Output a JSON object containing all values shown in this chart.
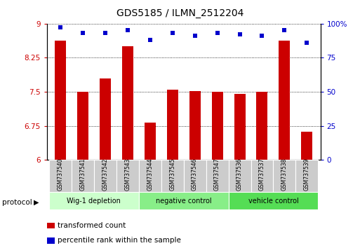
{
  "title": "GDS5185 / ILMN_2512204",
  "samples": [
    "GSM737540",
    "GSM737541",
    "GSM737542",
    "GSM737543",
    "GSM737544",
    "GSM737545",
    "GSM737546",
    "GSM737547",
    "GSM737536",
    "GSM737537",
    "GSM737538",
    "GSM737539"
  ],
  "bar_values": [
    8.62,
    7.5,
    7.8,
    8.5,
    6.82,
    7.55,
    7.52,
    7.5,
    7.45,
    7.5,
    8.62,
    6.62
  ],
  "dot_values": [
    97,
    93,
    93,
    95,
    88,
    93,
    91,
    93,
    92,
    91,
    95,
    86
  ],
  "bar_color": "#cc0000",
  "dot_color": "#0000cc",
  "ylim_left": [
    6,
    9
  ],
  "ylim_right": [
    0,
    100
  ],
  "yticks_left": [
    6,
    6.75,
    7.5,
    8.25,
    9
  ],
  "ytick_labels_left": [
    "6",
    "6.75",
    "7.5",
    "8.25",
    "9"
  ],
  "yticks_right": [
    0,
    25,
    50,
    75,
    100
  ],
  "ytick_labels_right": [
    "0",
    "25",
    "50",
    "75",
    "100%"
  ],
  "groups": [
    {
      "label": "Wig-1 depletion",
      "start": 0,
      "end": 3,
      "color": "#ccffcc"
    },
    {
      "label": "negative control",
      "start": 4,
      "end": 7,
      "color": "#88ee88"
    },
    {
      "label": "vehicle control",
      "start": 8,
      "end": 11,
      "color": "#55dd55"
    }
  ],
  "protocol_label": "protocol",
  "legend": [
    {
      "label": "transformed count",
      "color": "#cc0000"
    },
    {
      "label": "percentile rank within the sample",
      "color": "#0000cc"
    }
  ],
  "xlabel_color": "#bbbbbb",
  "bar_width": 0.5,
  "dot_size": 22
}
